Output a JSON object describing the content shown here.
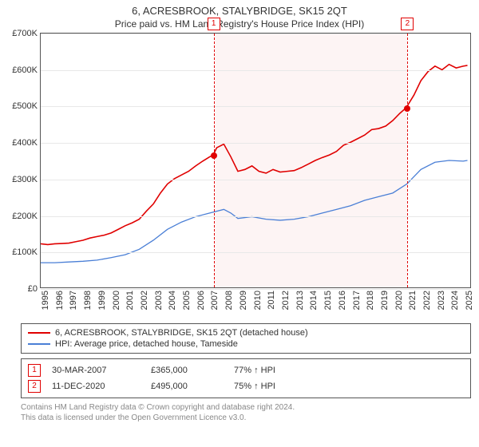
{
  "title": "6, ACRESBROOK, STALYBRIDGE, SK15 2QT",
  "subtitle": "Price paid vs. HM Land Registry's House Price Index (HPI)",
  "chart": {
    "type": "line",
    "plot_bg": "#ffffff",
    "border_color": "#555555",
    "grid_color": "#e8e8e8",
    "y": {
      "min": 0,
      "max": 700000,
      "step": 100000,
      "ticks": [
        0,
        100000,
        200000,
        300000,
        400000,
        500000,
        600000,
        700000
      ],
      "tick_labels": [
        "£0",
        "£100K",
        "£200K",
        "£300K",
        "£400K",
        "£500K",
        "£600K",
        "£700K"
      ],
      "label_fontsize": 11
    },
    "x": {
      "min": 1995,
      "max": 2025.5,
      "ticks": [
        1995,
        1996,
        1997,
        1998,
        1999,
        2000,
        2001,
        2002,
        2003,
        2004,
        2005,
        2006,
        2007,
        2008,
        2009,
        2010,
        2011,
        2012,
        2013,
        2014,
        2015,
        2016,
        2017,
        2018,
        2019,
        2020,
        2021,
        2022,
        2023,
        2024,
        2025
      ],
      "label_fontsize": 11
    },
    "shaded_band": {
      "from": 2007.24,
      "to": 2020.95,
      "color": "#fdf4f4"
    },
    "vlines": [
      {
        "x": 2007.24,
        "color": "#e00000",
        "dash": true
      },
      {
        "x": 2020.95,
        "color": "#e00000",
        "dash": true
      }
    ],
    "badges": [
      {
        "n": "1",
        "x": 2007.24
      },
      {
        "n": "2",
        "x": 2020.95
      }
    ],
    "markers": [
      {
        "x": 2007.24,
        "y": 365000,
        "color": "#e00000"
      },
      {
        "x": 2020.95,
        "y": 495000,
        "color": "#e00000"
      }
    ],
    "series": [
      {
        "name": "6, ACRESBROOK, STALYBRIDGE, SK15 2QT (detached house)",
        "color": "#e00000",
        "width": 1.6,
        "points": [
          [
            1995.0,
            120000
          ],
          [
            1995.5,
            118000
          ],
          [
            1996.0,
            120000
          ],
          [
            1996.5,
            121000
          ],
          [
            1997.0,
            122000
          ],
          [
            1997.5,
            126000
          ],
          [
            1998.0,
            130000
          ],
          [
            1998.5,
            136000
          ],
          [
            1999.0,
            140000
          ],
          [
            1999.5,
            144000
          ],
          [
            2000.0,
            150000
          ],
          [
            2000.5,
            160000
          ],
          [
            2001.0,
            170000
          ],
          [
            2001.5,
            178000
          ],
          [
            2002.0,
            188000
          ],
          [
            2002.5,
            210000
          ],
          [
            2003.0,
            230000
          ],
          [
            2003.5,
            260000
          ],
          [
            2004.0,
            285000
          ],
          [
            2004.5,
            300000
          ],
          [
            2005.0,
            310000
          ],
          [
            2005.5,
            320000
          ],
          [
            2006.0,
            335000
          ],
          [
            2006.5,
            348000
          ],
          [
            2007.0,
            360000
          ],
          [
            2007.24,
            365000
          ],
          [
            2007.5,
            385000
          ],
          [
            2008.0,
            395000
          ],
          [
            2008.5,
            360000
          ],
          [
            2009.0,
            320000
          ],
          [
            2009.5,
            325000
          ],
          [
            2010.0,
            335000
          ],
          [
            2010.5,
            320000
          ],
          [
            2011.0,
            315000
          ],
          [
            2011.5,
            325000
          ],
          [
            2012.0,
            318000
          ],
          [
            2012.5,
            320000
          ],
          [
            2013.0,
            322000
          ],
          [
            2013.5,
            330000
          ],
          [
            2014.0,
            340000
          ],
          [
            2014.5,
            350000
          ],
          [
            2015.0,
            358000
          ],
          [
            2015.5,
            365000
          ],
          [
            2016.0,
            375000
          ],
          [
            2016.5,
            392000
          ],
          [
            2017.0,
            400000
          ],
          [
            2017.5,
            410000
          ],
          [
            2018.0,
            420000
          ],
          [
            2018.5,
            435000
          ],
          [
            2019.0,
            438000
          ],
          [
            2019.5,
            445000
          ],
          [
            2020.0,
            460000
          ],
          [
            2020.5,
            480000
          ],
          [
            2020.95,
            495000
          ],
          [
            2021.5,
            530000
          ],
          [
            2022.0,
            570000
          ],
          [
            2022.5,
            595000
          ],
          [
            2023.0,
            610000
          ],
          [
            2023.5,
            600000
          ],
          [
            2024.0,
            615000
          ],
          [
            2024.5,
            605000
          ],
          [
            2025.0,
            610000
          ],
          [
            2025.3,
            612000
          ]
        ]
      },
      {
        "name": "HPI: Average price, detached house, Tameside",
        "color": "#4a7fd6",
        "width": 1.3,
        "points": [
          [
            1995.0,
            68000
          ],
          [
            1996.0,
            68000
          ],
          [
            1997.0,
            70000
          ],
          [
            1998.0,
            72000
          ],
          [
            1999.0,
            75000
          ],
          [
            2000.0,
            82000
          ],
          [
            2001.0,
            90000
          ],
          [
            2002.0,
            105000
          ],
          [
            2003.0,
            130000
          ],
          [
            2004.0,
            160000
          ],
          [
            2005.0,
            180000
          ],
          [
            2006.0,
            195000
          ],
          [
            2007.0,
            205000
          ],
          [
            2008.0,
            215000
          ],
          [
            2008.5,
            205000
          ],
          [
            2009.0,
            190000
          ],
          [
            2010.0,
            195000
          ],
          [
            2011.0,
            188000
          ],
          [
            2012.0,
            185000
          ],
          [
            2013.0,
            188000
          ],
          [
            2014.0,
            195000
          ],
          [
            2015.0,
            205000
          ],
          [
            2016.0,
            215000
          ],
          [
            2017.0,
            225000
          ],
          [
            2018.0,
            240000
          ],
          [
            2019.0,
            250000
          ],
          [
            2020.0,
            260000
          ],
          [
            2021.0,
            285000
          ],
          [
            2022.0,
            325000
          ],
          [
            2023.0,
            345000
          ],
          [
            2024.0,
            350000
          ],
          [
            2025.0,
            348000
          ],
          [
            2025.3,
            350000
          ]
        ]
      }
    ]
  },
  "legend": {
    "border_color": "#555555",
    "items": [
      {
        "color": "#e00000",
        "label": "6, ACRESBROOK, STALYBRIDGE, SK15 2QT (detached house)"
      },
      {
        "color": "#4a7fd6",
        "label": "HPI: Average price, detached house, Tameside"
      }
    ]
  },
  "transactions": [
    {
      "n": "1",
      "date": "30-MAR-2007",
      "price": "£365,000",
      "delta": "77% ↑ HPI"
    },
    {
      "n": "2",
      "date": "11-DEC-2020",
      "price": "£495,000",
      "delta": "75% ↑ HPI"
    }
  ],
  "footer": {
    "line1": "Contains HM Land Registry data © Crown copyright and database right 2024.",
    "line2": "This data is licensed under the Open Government Licence v3.0."
  }
}
